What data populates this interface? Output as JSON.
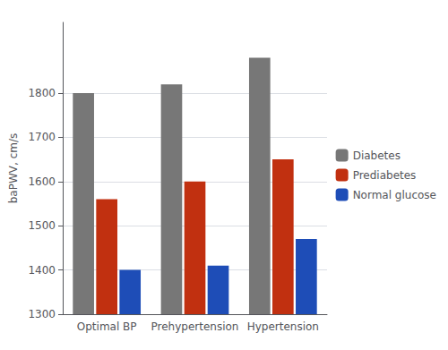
{
  "chart_data": {
    "type": "bar",
    "categories": [
      "Optimal BP",
      "Prehypertension",
      "Hypertension"
    ],
    "series": [
      {
        "name": "Diabetes",
        "color": "#777777",
        "values": [
          1800,
          1820,
          1880
        ]
      },
      {
        "name": "Prediabetes",
        "color": "#C13010",
        "values": [
          1560,
          1600,
          1650
        ]
      },
      {
        "name": "Normal glucose",
        "color": "#1E4DB7",
        "values": [
          1400,
          1410,
          1470
        ]
      }
    ],
    "ylabel": "baPWV, cm/s",
    "ylim": [
      1300,
      1960
    ],
    "yticks": [
      1300,
      1400,
      1500,
      1600,
      1700,
      1800
    ],
    "grid": true,
    "legend": "right"
  }
}
